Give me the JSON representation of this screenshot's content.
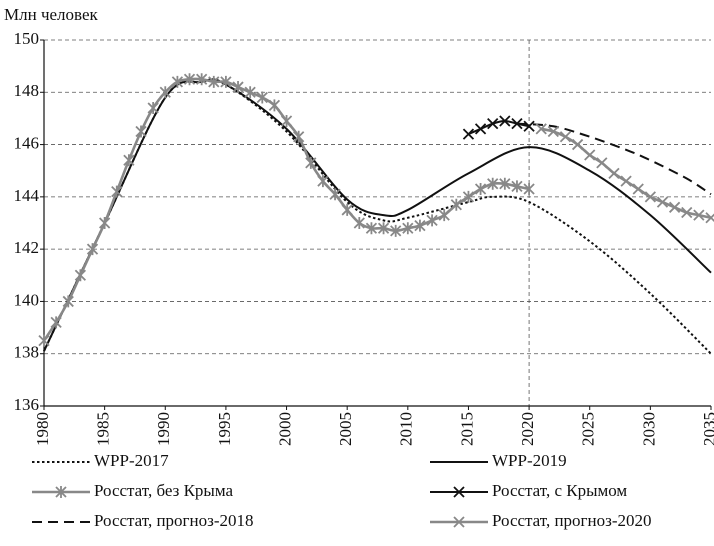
{
  "chart_data": {
    "type": "line",
    "ylabel": "Млн человек",
    "xlim": [
      1980,
      2035
    ],
    "xticks": [
      1980,
      1985,
      1990,
      1995,
      2000,
      2005,
      2010,
      2015,
      2020,
      2025,
      2030,
      2035
    ],
    "ylim": [
      136,
      150
    ],
    "yticks": [
      136,
      138,
      140,
      142,
      144,
      146,
      148,
      150
    ],
    "grid": true,
    "vertical_grid_at": 2020,
    "legend": "bottom",
    "series": [
      {
        "name": "WPP-2017",
        "color": "#111111",
        "style": "dotted",
        "marker": "none",
        "x": [
          1980,
          1985,
          1990,
          1993,
          1995,
          2000,
          2005,
          2008,
          2010,
          2015,
          2017,
          2020,
          2025,
          2030,
          2035
        ],
        "values": [
          138.1,
          143.0,
          147.8,
          148.4,
          148.3,
          146.5,
          143.8,
          143.1,
          143.2,
          143.8,
          144.0,
          143.8,
          142.3,
          140.3,
          138.0
        ]
      },
      {
        "name": "WPP-2019",
        "color": "#111111",
        "style": "solid",
        "marker": "none",
        "x": [
          1980,
          1985,
          1990,
          1993,
          1995,
          2000,
          2005,
          2008,
          2010,
          2015,
          2020,
          2025,
          2030,
          2035
        ],
        "values": [
          138.1,
          143.0,
          147.8,
          148.4,
          148.3,
          146.6,
          143.9,
          143.3,
          143.5,
          144.9,
          145.9,
          145.0,
          143.3,
          141.1
        ]
      },
      {
        "name": "Росстат, без Крыма",
        "color": "#888888",
        "style": "solid",
        "marker": "asterisk",
        "x": [
          1980,
          1981,
          1982,
          1983,
          1984,
          1985,
          1986,
          1987,
          1988,
          1989,
          1990,
          1991,
          1992,
          1993,
          1994,
          1995,
          1996,
          1997,
          1998,
          1999,
          2000,
          2001,
          2002,
          2003,
          2004,
          2005,
          2006,
          2007,
          2008,
          2009,
          2010,
          2011,
          2012,
          2013,
          2014,
          2015,
          2016,
          2017,
          2018,
          2019,
          2020
        ],
        "values": [
          138.5,
          139.2,
          140.0,
          141.0,
          142.0,
          143.0,
          144.2,
          145.4,
          146.5,
          147.4,
          148.0,
          148.4,
          148.5,
          148.5,
          148.4,
          148.4,
          148.2,
          148.0,
          147.8,
          147.5,
          146.9,
          146.3,
          145.3,
          144.6,
          144.1,
          143.5,
          143.0,
          142.8,
          142.8,
          142.7,
          142.8,
          142.9,
          143.1,
          143.3,
          143.7,
          144.0,
          144.3,
          144.5,
          144.5,
          144.4,
          144.3
        ]
      },
      {
        "name": "Росстат, с Крымом",
        "color": "#111111",
        "style": "solid",
        "marker": "cross",
        "x": [
          2015,
          2016,
          2017,
          2018,
          2019,
          2020
        ],
        "values": [
          146.4,
          146.6,
          146.8,
          146.9,
          146.8,
          146.7
        ]
      },
      {
        "name": "Росстат, прогноз-2018",
        "color": "#111111",
        "style": "dashed",
        "marker": "none",
        "x": [
          2019,
          2022,
          2025,
          2028,
          2030,
          2033,
          2035
        ],
        "values": [
          146.8,
          146.7,
          146.3,
          145.8,
          145.4,
          144.7,
          144.1
        ]
      },
      {
        "name": "Росстат, прогноз-2020",
        "color": "#888888",
        "style": "solid",
        "marker": "cross",
        "x": [
          2021,
          2022,
          2023,
          2024,
          2025,
          2026,
          2027,
          2028,
          2029,
          2030,
          2031,
          2032,
          2033,
          2034,
          2035
        ],
        "values": [
          146.6,
          146.5,
          146.3,
          146.0,
          145.6,
          145.3,
          144.9,
          144.6,
          144.3,
          144.0,
          143.8,
          143.6,
          143.4,
          143.3,
          143.2
        ]
      }
    ]
  }
}
